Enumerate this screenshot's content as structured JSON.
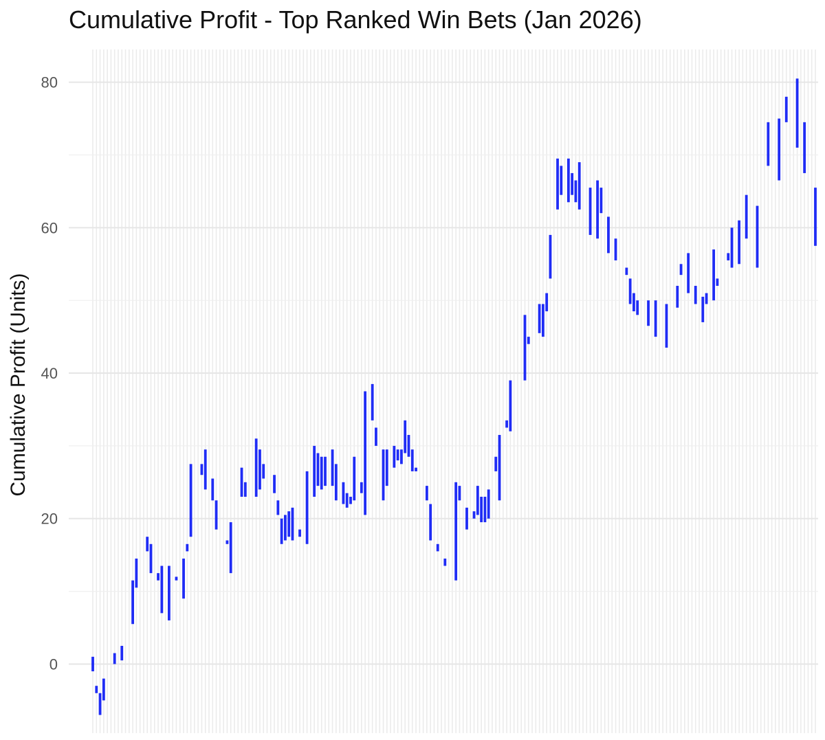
{
  "chart_data": {
    "type": "bar",
    "title": "Cumulative Profit - Top Ranked Win Bets (Jan 2026)",
    "xlabel": "",
    "ylabel": "Cumulative Profit (Units)",
    "ylim": [
      -9.5,
      84.5
    ],
    "yticks": [
      0,
      20,
      40,
      60,
      80
    ],
    "grid": true,
    "legend": "none",
    "colors": {
      "bar": "#1f2cf5",
      "grid": "#ebebeb",
      "background": "#ffffff"
    },
    "series": [
      {
        "values": [
          [
            -1,
            1
          ],
          [
            -4,
            -3
          ],
          [
            -7,
            -4
          ],
          [
            -5,
            -2
          ],
          null,
          null,
          [
            0,
            1.5
          ],
          null,
          [
            0.5,
            2.5
          ],
          null,
          null,
          [
            5.5,
            11.5
          ],
          [
            10.5,
            14.5
          ],
          null,
          null,
          [
            15.5,
            17.5
          ],
          [
            12.5,
            16.5
          ],
          null,
          [
            11.5,
            12.5
          ],
          [
            7,
            13.5
          ],
          null,
          [
            6,
            13.5
          ],
          null,
          [
            11.5,
            12
          ],
          null,
          [
            9,
            14.5
          ],
          [
            15.5,
            16.5
          ],
          [
            17.5,
            27.5
          ],
          null,
          null,
          [
            26,
            27.5
          ],
          [
            24,
            29.5
          ],
          null,
          [
            22.5,
            25.5
          ],
          [
            18.5,
            22.5
          ],
          null,
          null,
          [
            16.5,
            17
          ],
          [
            12.5,
            19.5
          ],
          null,
          null,
          [
            23,
            27
          ],
          [
            23,
            25
          ],
          null,
          null,
          [
            23,
            31
          ],
          [
            24,
            29.5
          ],
          [
            25.5,
            27.5
          ],
          null,
          null,
          [
            23.5,
            26
          ],
          [
            20.5,
            22.5
          ],
          [
            16.5,
            20
          ],
          [
            17,
            20.5
          ],
          [
            17.5,
            21
          ],
          [
            17,
            21.5
          ],
          null,
          [
            17.5,
            18.5
          ],
          null,
          [
            16.5,
            26.5
          ],
          null,
          [
            23,
            30
          ],
          [
            24.5,
            29
          ],
          [
            24,
            28.5
          ],
          [
            24.5,
            28.5
          ],
          null,
          [
            24.5,
            29.5
          ],
          [
            22.5,
            27.5
          ],
          null,
          [
            22,
            25
          ],
          [
            21.5,
            23.5
          ],
          [
            22,
            23
          ],
          [
            22.5,
            28.5
          ],
          null,
          [
            23.5,
            25
          ],
          [
            20.5,
            37.5
          ],
          null,
          [
            33.5,
            38.5
          ],
          [
            30,
            32.5
          ],
          null,
          [
            22.5,
            29.5
          ],
          [
            24.5,
            29.5
          ],
          null,
          [
            27,
            30
          ],
          [
            28,
            29.5
          ],
          [
            27.5,
            29.5
          ],
          [
            29,
            33.5
          ],
          [
            28.5,
            31.5
          ],
          [
            26.5,
            29.5
          ],
          [
            26.5,
            27
          ],
          null,
          null,
          [
            22.5,
            24.5
          ],
          [
            17,
            22
          ],
          null,
          [
            15.5,
            16.5
          ],
          null,
          [
            13.5,
            14.5
          ],
          null,
          null,
          [
            11.5,
            25
          ],
          [
            22.5,
            24.5
          ],
          null,
          [
            18.5,
            21.5
          ],
          null,
          [
            20,
            21
          ],
          [
            20.5,
            24.5
          ],
          [
            19.5,
            23
          ],
          [
            19.5,
            23
          ],
          [
            20,
            24
          ],
          null,
          [
            26.5,
            28.5
          ],
          [
            22.5,
            31.5
          ],
          null,
          [
            32.5,
            33.5
          ],
          [
            32,
            39
          ],
          null,
          null,
          null,
          [
            39,
            48
          ],
          [
            44,
            45
          ],
          null,
          null,
          [
            45.5,
            49.5
          ],
          [
            45,
            49.5
          ],
          [
            48.5,
            51
          ],
          [
            53,
            59
          ],
          null,
          [
            62.5,
            69.5
          ],
          [
            64.5,
            68.5
          ],
          null,
          [
            63.5,
            69.5
          ],
          [
            64.5,
            67.5
          ],
          [
            63.5,
            66.5
          ],
          [
            62.5,
            69
          ],
          null,
          null,
          [
            59,
            65.5
          ],
          null,
          [
            58.5,
            66.5
          ],
          [
            62,
            65.5
          ],
          null,
          [
            56.5,
            61.5
          ],
          null,
          [
            55.5,
            58.5
          ],
          null,
          null,
          [
            53.5,
            54.5
          ],
          [
            49.5,
            53
          ],
          [
            48.5,
            51
          ],
          [
            48,
            50
          ],
          null,
          null,
          [
            46.5,
            50
          ],
          null,
          [
            45,
            50
          ],
          null,
          null,
          [
            43.5,
            49.5
          ],
          null,
          null,
          [
            49,
            52
          ],
          [
            53.5,
            55
          ],
          null,
          [
            51,
            56.5
          ],
          null,
          [
            49.5,
            52
          ],
          null,
          [
            47,
            50.5
          ],
          [
            49.5,
            51
          ],
          null,
          [
            50,
            57
          ],
          [
            52,
            53
          ],
          null,
          null,
          [
            55.5,
            56.5
          ],
          [
            54.5,
            60
          ],
          null,
          [
            55,
            61
          ],
          null,
          [
            58.5,
            64.5
          ],
          null,
          null,
          [
            54.5,
            63
          ],
          null,
          null,
          [
            68.5,
            74.5
          ],
          null,
          null,
          [
            66.5,
            75
          ],
          null,
          [
            74.5,
            78
          ],
          null,
          null,
          [
            71,
            80.5
          ],
          null,
          [
            67.5,
            74.5
          ],
          null,
          null,
          [
            57.5,
            65.5
          ]
        ]
      }
    ]
  }
}
